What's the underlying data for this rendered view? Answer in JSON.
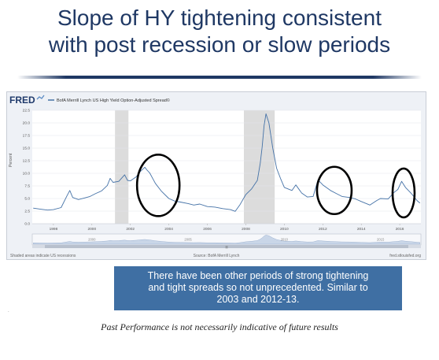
{
  "slide": {
    "title_line1": "Slope of HY tightening consistent",
    "title_line2": "with post recession or slow periods",
    "callout_line1": "There have been other periods of strong tightening",
    "callout_line2": "and tight spreads so not unprecedented. Similar to",
    "callout_line3": "2003 and 2012-13.",
    "disclaimer": "Past Performance is not necessarily indicative of future results"
  },
  "fred": {
    "logo": "FRED",
    "footer_left": "Shaded areas indicate US recessions",
    "footer_center": "Source: BofA Merrill Lynch",
    "footer_right": "fred.stlouisfed.org"
  },
  "colors": {
    "line": "#4572a7",
    "recession": "#dcdcdc",
    "title": "#1f3864",
    "callout": "#3f6fa3"
  },
  "chart_data": {
    "type": "line",
    "title": "",
    "legend": "BofA Merrill Lynch US High Yield Option-Adjusted Spread©",
    "ylabel": "Percent",
    "xlabel": "",
    "xlim": [
      1996.9,
      2017.1
    ],
    "ylim": [
      0,
      22.5
    ],
    "yticks": [
      "0.0",
      "2.5",
      "5.0",
      "7.5",
      "10.0",
      "12.5",
      "15.0",
      "17.5",
      "20.0",
      "22.5"
    ],
    "xticks": [
      "1998",
      "2000",
      "2002",
      "2004",
      "2006",
      "2008",
      "2010",
      "2012",
      "2014",
      "2016"
    ],
    "navigator_labels": [
      "2000",
      "2005",
      "2010",
      "2015"
    ],
    "grid": true,
    "recessions": [
      [
        2001.2,
        2001.9
      ],
      [
        2007.9,
        2009.5
      ]
    ],
    "series": [
      {
        "x": [
          1996.95,
          1997.3,
          1997.7,
          1998.0,
          1998.4,
          1998.7,
          1998.85,
          1999.0,
          1999.3,
          1999.6,
          1999.9,
          2000.2,
          2000.5,
          2000.8,
          2000.95,
          2001.1,
          2001.4,
          2001.7,
          2001.85,
          2002.0,
          2002.3,
          2002.5,
          2002.75,
          2002.85,
          2003.0,
          2003.3,
          2003.6,
          2004.0,
          2004.3,
          2004.6,
          2005.0,
          2005.3,
          2005.6,
          2006.0,
          2006.4,
          2006.8,
          2007.2,
          2007.45,
          2007.7,
          2008.0,
          2008.3,
          2008.6,
          2008.75,
          2008.85,
          2008.95,
          2009.05,
          2009.2,
          2009.4,
          2009.6,
          2009.8,
          2010.0,
          2010.4,
          2010.6,
          2010.9,
          2011.2,
          2011.5,
          2011.75,
          2012.0,
          2012.4,
          2012.7,
          2013.0,
          2013.4,
          2013.7,
          2014.0,
          2014.45,
          2014.8,
          2015.0,
          2015.4,
          2015.7,
          2015.9,
          2016.1,
          2016.3,
          2016.6,
          2016.9,
          2017.05
        ],
        "y": [
          3.1,
          2.9,
          2.7,
          2.8,
          3.2,
          5.5,
          6.6,
          5.2,
          4.8,
          5.1,
          5.4,
          6.0,
          6.5,
          7.6,
          9.0,
          8.2,
          8.4,
          9.7,
          8.6,
          8.5,
          9.3,
          10.3,
          11.2,
          10.7,
          10.1,
          8.0,
          6.5,
          5.0,
          4.5,
          4.3,
          4.0,
          3.7,
          3.9,
          3.4,
          3.3,
          3.0,
          2.8,
          2.45,
          3.8,
          5.8,
          6.9,
          8.6,
          12.0,
          15.2,
          19.5,
          21.8,
          20.0,
          15.0,
          11.0,
          9.0,
          7.2,
          6.6,
          7.7,
          6.1,
          5.3,
          5.4,
          8.7,
          7.7,
          6.6,
          6.0,
          5.4,
          5.2,
          4.9,
          4.4,
          3.7,
          4.6,
          5.0,
          4.9,
          6.2,
          6.8,
          8.4,
          7.2,
          6.0,
          4.6,
          4.1
        ]
      }
    ],
    "annotations": [
      {
        "type": "circle",
        "period": "2002-2004"
      },
      {
        "type": "circle",
        "period": "2011-2013"
      },
      {
        "type": "circle",
        "period": "2015-2017"
      }
    ]
  }
}
